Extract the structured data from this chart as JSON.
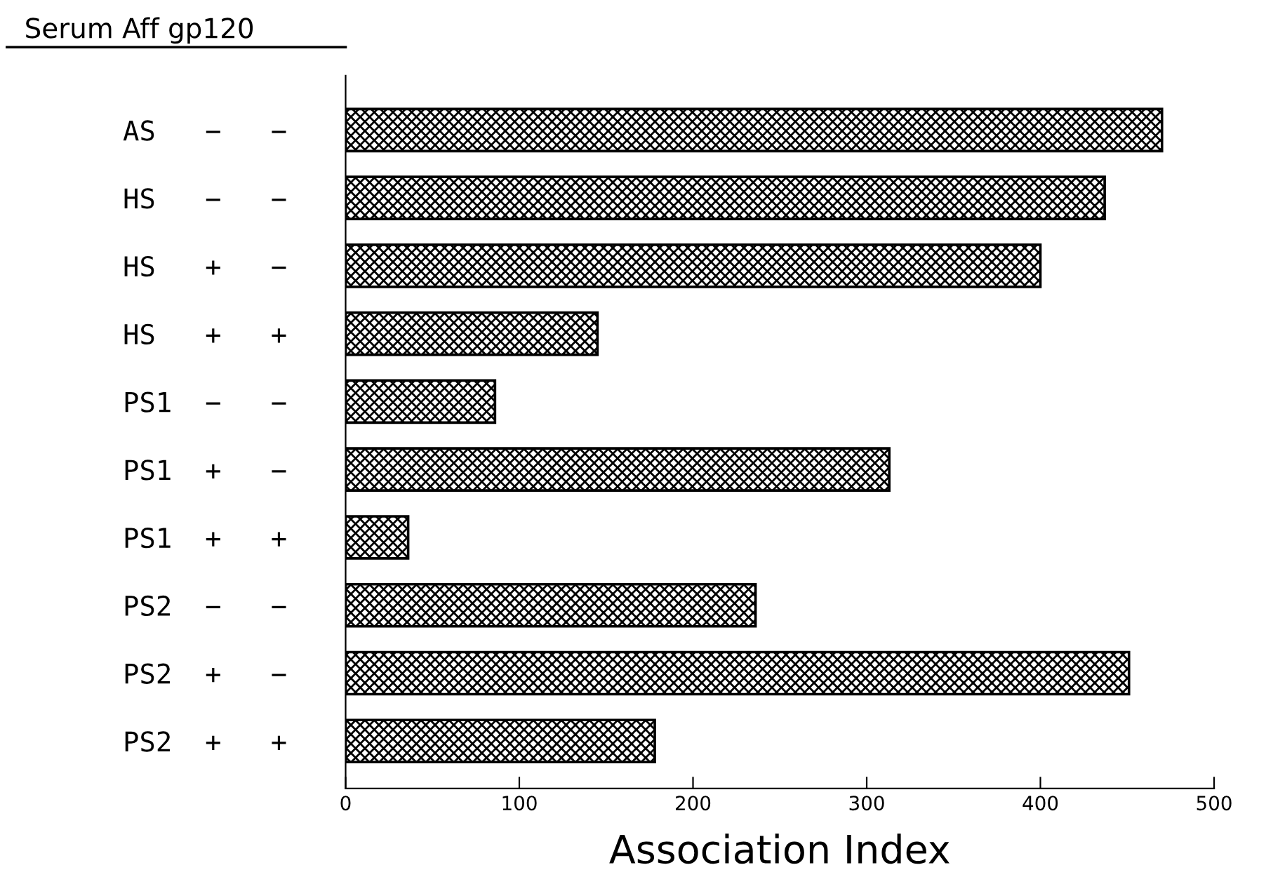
{
  "chart_data": {
    "type": "bar",
    "orientation": "horizontal",
    "ylabel": "Serum Aff gp120",
    "xlabel": "Association Index",
    "categories": [
      "AS   −   −",
      "HS   −   −",
      "HS   +   −",
      "HS   +   +",
      "PS1  −   −",
      "PS1  +   −",
      "PS1  +   +",
      "PS2  −   −",
      "PS2  +   −",
      "PS2  +   +"
    ],
    "values": [
      470,
      437,
      400,
      145,
      86,
      313,
      36,
      236,
      451,
      178
    ],
    "color": "#000000",
    "xlim": [
      0,
      500
    ],
    "xticks": [
      0,
      100,
      200,
      300,
      400,
      500
    ],
    "grid": false,
    "legend": false
  }
}
